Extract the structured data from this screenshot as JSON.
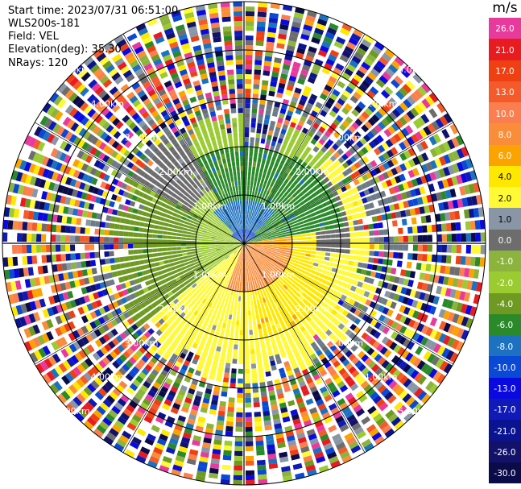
{
  "header": {
    "start_time": "Start time: 2023/07/31 06:51:00",
    "site": "WLS200s-181",
    "field": "Field: VEL",
    "elevation": "Elevation(deg): 35.30",
    "nrays": "NRays: 120"
  },
  "colorbar": {
    "unit": "m/s",
    "labels": [
      "26.0",
      "21.0",
      "17.0",
      "13.0",
      "10.0",
      "8.0",
      "6.0",
      "4.0",
      "2.0",
      "1.0",
      "0.0",
      "-1.0",
      "-2.0",
      "-4.0",
      "-6.0",
      "-8.0",
      "-10.0",
      "-13.0",
      "-17.0",
      "-21.0",
      "-26.0",
      "-30.0"
    ],
    "colors": [
      "#e83a9c",
      "#e81c20",
      "#ee4012",
      "#f45a2a",
      "#fb7f4e",
      "#f98d3a",
      "#fba400",
      "#ffe800",
      "#fffa35",
      "#8896a6",
      "#6d6d6d",
      "#8cb43c",
      "#9acb30",
      "#6e9a22",
      "#2a8a2a",
      "#1c72c0",
      "#0a48d6",
      "#0a0ae0",
      "#0f1ab8",
      "#0a1490",
      "#12126a",
      "#0b0b4a"
    ]
  },
  "chart_data": {
    "type": "polar-ppi",
    "field": "VEL",
    "units": "m/s",
    "n_rays": 120,
    "elevation_deg": 35.3,
    "range_ring_labels": [
      "1.00km",
      "2.00km",
      "3.00km",
      "4.00km",
      "5.00km"
    ],
    "velocity_regions": [
      {
        "sector": "north, 0-2 km",
        "dominant_velocity": "-6.0"
      },
      {
        "sector": "center-north, 0-1 km",
        "dominant_velocity": "-8.0"
      },
      {
        "sector": "northwest, 1-3 km",
        "dominant_velocity": "-2.0"
      },
      {
        "sector": "east, 1-2 km",
        "dominant_velocity": "0.0"
      },
      {
        "sector": "southeast, 0-1 km",
        "dominant_velocity": "8.0"
      },
      {
        "sector": "south/east, 1-3 km",
        "dominant_velocity": "2.0"
      },
      {
        "sector": "southwest, 1-3 km",
        "dominant_velocity": "-4.0"
      },
      {
        "sector": "beyond 3 km",
        "dominant_velocity": "noise"
      }
    ]
  }
}
